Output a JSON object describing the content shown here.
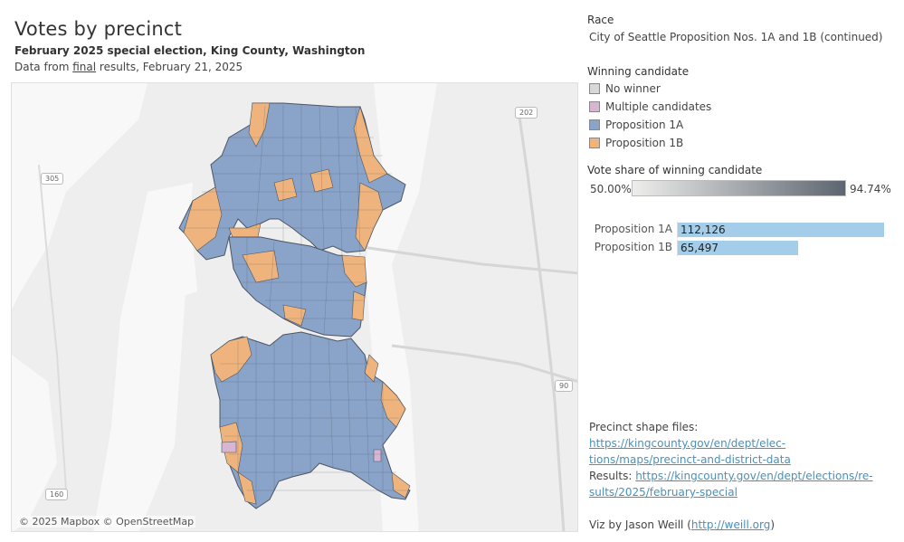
{
  "header": {
    "title": "Votes by precinct",
    "subtitle": "February 2025 special election, King County, Washington",
    "source_prefix": "Data from ",
    "source_link": "final",
    "source_suffix": " results, February 21, 2025"
  },
  "map": {
    "attribution": "© 2025 Mapbox © OpenStreetMap",
    "shields": [
      "202",
      "305",
      "160",
      "90"
    ]
  },
  "race": {
    "label": "Race",
    "value": "City of Seattle Proposition Nos. 1A and 1B (continued)"
  },
  "legend": {
    "label": "Winning candidate",
    "items": [
      {
        "label": "No winner",
        "color": "#d9d7d7"
      },
      {
        "label": "Multiple candidates",
        "color": "#d8b5d3"
      },
      {
        "label": "Proposition 1A",
        "color": "#8aa3c8"
      },
      {
        "label": "Proposition 1B",
        "color": "#efb47d"
      }
    ]
  },
  "vote_share": {
    "label": "Vote share of winning candidate",
    "min": "50.00%",
    "max": "94.74%"
  },
  "totals": [
    {
      "label": "Proposition 1A",
      "value_text": "112,126",
      "value": 112126
    },
    {
      "label": "Proposition 1B",
      "value_text": "65,497",
      "value": 65497
    }
  ],
  "bar_color": "#a3cde9",
  "notes": {
    "shapes_prefix": "Precinct shape files: ",
    "shapes_link_1": "https://kingcounty.gov/en/dept/elec-",
    "shapes_link_2": "tions/maps/precinct-and-district-data",
    "results_prefix": "Results: ",
    "results_link_1": "https://kingcounty.gov/en/dept/elections/re-",
    "results_link_2": "sults/2025/february-special",
    "viz_prefix": "Viz by Jason Weill (",
    "viz_link": "http://weill.org",
    "viz_suffix": ")"
  }
}
